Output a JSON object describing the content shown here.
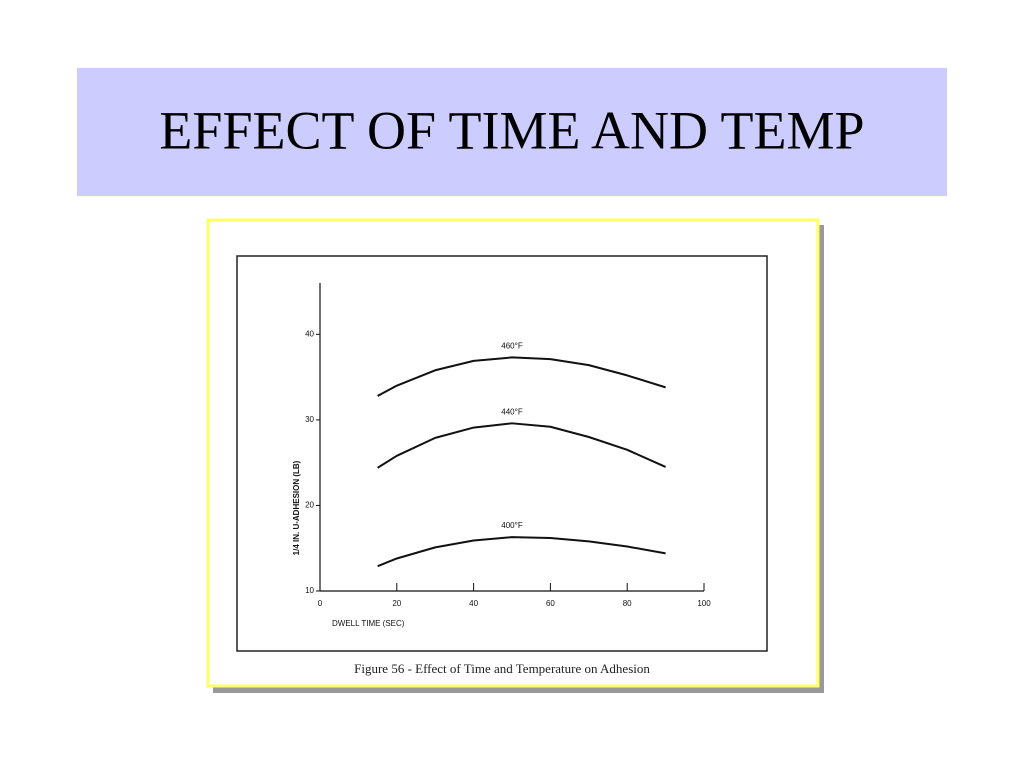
{
  "slide_title": "EFFECT OF TIME AND TEMP",
  "chart_data": {
    "type": "line",
    "title": "Figure 56 - Effect of Time and Temperature on Adhesion",
    "x_label": "DWELL TIME (SEC)",
    "y_label": "1/4 IN. U-ADHESION (LB)",
    "x": [
      15,
      20,
      30,
      40,
      50,
      60,
      70,
      80,
      90
    ],
    "series": [
      {
        "name": "460°F",
        "color": "#111111",
        "values": [
          32.8,
          34.0,
          35.8,
          36.9,
          37.3,
          37.1,
          36.4,
          35.2,
          33.8
        ]
      },
      {
        "name": "440°F",
        "color": "#111111",
        "values": [
          24.4,
          25.8,
          27.9,
          29.1,
          29.6,
          29.2,
          28.0,
          26.5,
          24.5
        ]
      },
      {
        "name": "400°F",
        "color": "#111111",
        "values": [
          12.9,
          13.8,
          15.1,
          15.9,
          16.3,
          16.2,
          15.8,
          15.2,
          14.4
        ]
      }
    ],
    "xlim": [
      0,
      100
    ],
    "xticks": [
      0,
      20,
      40,
      60,
      80,
      100
    ],
    "ylim": [
      10,
      46
    ],
    "yticks": [
      10,
      20,
      30,
      40
    ],
    "grid": false
  }
}
